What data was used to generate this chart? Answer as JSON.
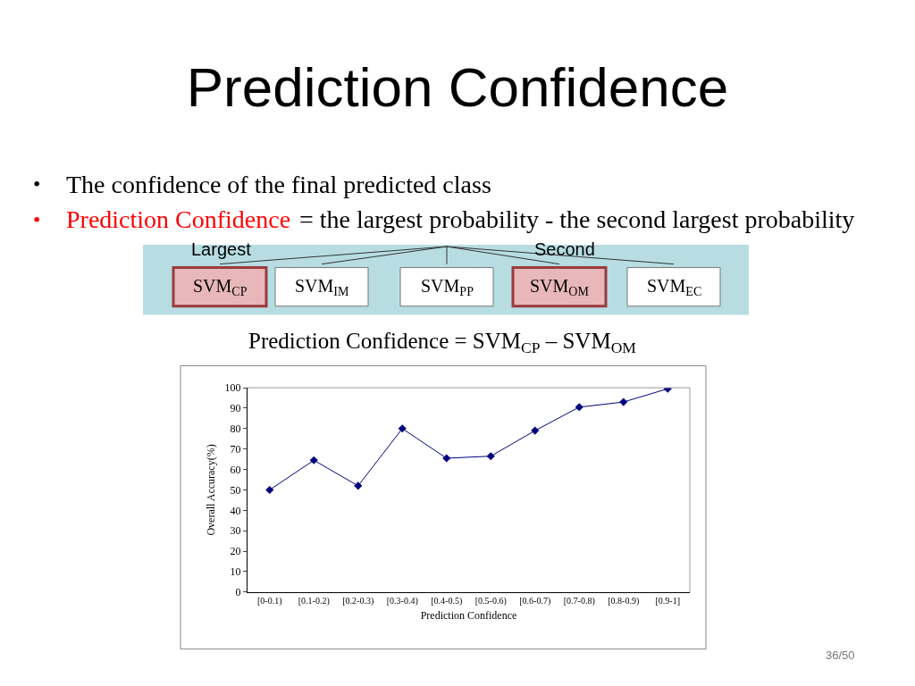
{
  "chart_data": {
    "type": "line",
    "title": "Prediction Confidence",
    "categories": [
      "[0-0.1)",
      "[0.1-0.2)",
      "[0.2-0.3)",
      "[0.3-0.4)",
      "[0.4-0.5)",
      "[0.5-0.6)",
      "[0.6-0.7)",
      "[0.7-0.8)",
      "[0.8-0.9)",
      "[0.9-1]"
    ],
    "series": [
      {
        "color": "#000080",
        "values": [
          50,
          64.5,
          52,
          80,
          65.5,
          66.5,
          79,
          90.5,
          93,
          99.5
        ]
      }
    ],
    "xlabel": "Prediction Confidence",
    "ylabel": "Overall Accuracy(%)",
    "ylim": [
      0,
      100
    ],
    "yticks": [
      0,
      10,
      20,
      30,
      40,
      50,
      60,
      70,
      80,
      90,
      100
    ],
    "marker": "diamond",
    "line_style": "solid",
    "annotations": [
      "•",
      "•",
      "The confidence of the final predicted class",
      "Prediction Confidence",
      "= the largest probability - the second largest probability",
      "Largest",
      "Second",
      "SVM$_{CP}$",
      "SVM$_{IM}$",
      "SVM$_{PP}$",
      "SVM$_{OM}$",
      "SVM$_{EC}$",
      "Prediction Confidence = SVM$_{CP}$ – SVM$_{OM}$",
      "36/50"
    ]
  }
}
